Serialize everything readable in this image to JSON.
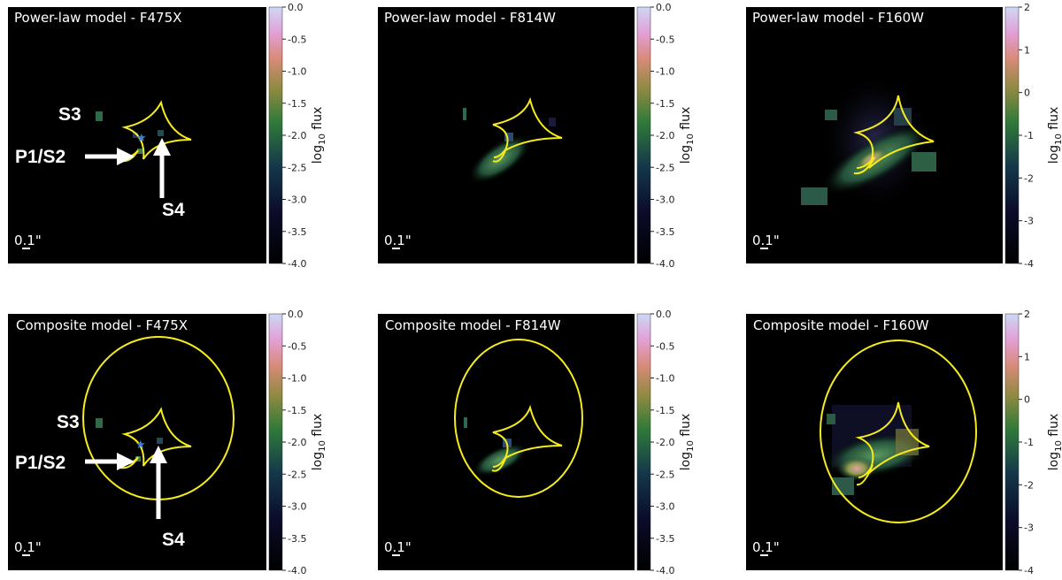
{
  "figure": {
    "panels": [
      {
        "title": "Power-law model - F475X",
        "scalebar": "0.1\"",
        "cbar": {
          "ticks": [
            "0.0",
            "-0.5",
            "-1.0",
            "-1.5",
            "-2.0",
            "-2.5",
            "-3.0",
            "-3.5",
            "-4.0"
          ],
          "label": "log10 flux"
        }
      },
      {
        "title": "Power-law model - F814W",
        "scalebar": "0.1\"",
        "cbar": {
          "ticks": [
            "0.0",
            "-0.5",
            "-1.0",
            "-1.5",
            "-2.0",
            "-2.5",
            "-3.0",
            "-3.5",
            "-4.0"
          ],
          "label": "log10 flux"
        }
      },
      {
        "title": "Power-law model - F160W",
        "scalebar": "0.1\"",
        "cbar": {
          "ticks": [
            "2",
            "1",
            "0",
            "-1",
            "-2",
            "-3",
            "-4"
          ],
          "label": "log10 flux"
        }
      },
      {
        "title": "Composite model - F475X",
        "scalebar": "0.1\"",
        "cbar": {
          "ticks": [
            "0.0",
            "-0.5",
            "-1.0",
            "-1.5",
            "-2.0",
            "-2.5",
            "-3.0",
            "-3.5",
            "-4.0"
          ],
          "label": "log10 flux"
        }
      },
      {
        "title": "Composite model - F814W",
        "scalebar": "0.1\"",
        "cbar": {
          "ticks": [
            "0.0",
            "-0.5",
            "-1.0",
            "-1.5",
            "-2.0",
            "-2.5",
            "-3.0",
            "-3.5",
            "-4.0"
          ],
          "label": "log10 flux"
        }
      },
      {
        "title": "Composite model - F160W",
        "scalebar": "0.1\"",
        "cbar": {
          "ticks": [
            "2",
            "1",
            "0",
            "-1",
            "-2",
            "-3",
            "-4"
          ],
          "label": "log10 flux"
        }
      }
    ],
    "annotations": {
      "s3": "S3",
      "p1s2": "P1/S2",
      "s4": "S4"
    },
    "colors": {
      "background": "#000000",
      "caustic": "#f5eb1e",
      "arrow": "#ffffff",
      "star": "#3b7fd0"
    }
  }
}
